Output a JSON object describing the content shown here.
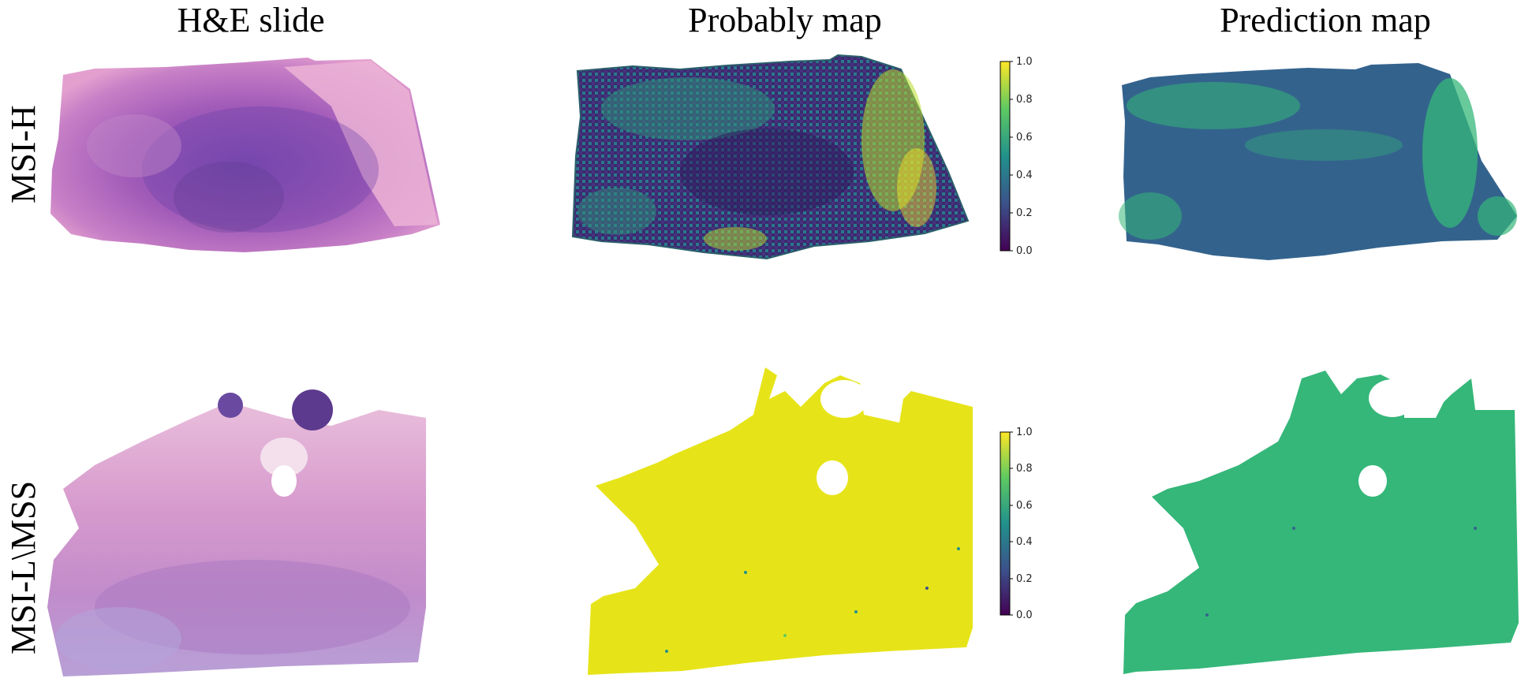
{
  "columns": {
    "he": "H&E slide",
    "prob": "Probably map",
    "pred": "Prediction map"
  },
  "rows": {
    "top": "MSI-H",
    "bottom": "MSI-L\\MSS"
  },
  "colorbar": {
    "min": 0.0,
    "max": 1.0,
    "ticks": [
      "0.0",
      "0.2",
      "0.4",
      "0.6",
      "0.8",
      "1.0"
    ],
    "colormap": "viridis"
  },
  "colors": {
    "he_pink": "#e7a4cf",
    "he_purple": "#a05ab8",
    "he_dark": "#5c3a8e",
    "viridis_dark": "#3b2a6e",
    "viridis_mid": "#2c6e8e",
    "viridis_green": "#3bb26f",
    "viridis_yellow": "#e6e419",
    "pred_blue": "#33638d",
    "pred_green": "#35b779"
  }
}
